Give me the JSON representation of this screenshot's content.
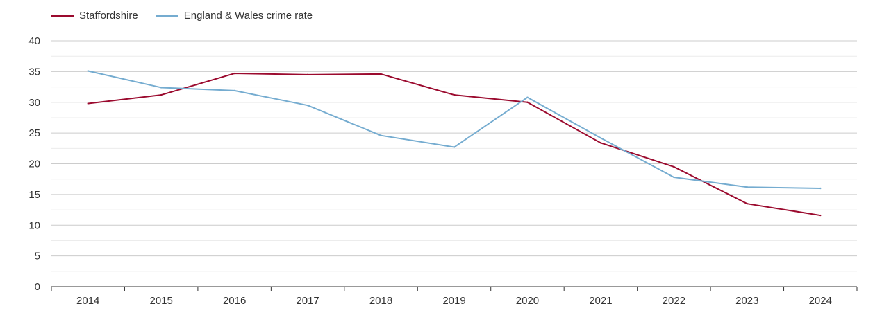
{
  "chart_data": {
    "type": "line",
    "title": "",
    "xlabel": "",
    "ylabel": "",
    "x": [
      "2014",
      "2015",
      "2016",
      "2017",
      "2018",
      "2019",
      "2020",
      "2021",
      "2022",
      "2023",
      "2024"
    ],
    "ylim": [
      0,
      40
    ],
    "yticks": [
      0,
      5,
      10,
      15,
      20,
      25,
      30,
      35,
      40
    ],
    "grid": true,
    "legend_position": "top-left",
    "series": [
      {
        "name": "Staffordshire",
        "color": "#9b0a2e",
        "values": [
          29.8,
          31.2,
          34.7,
          34.5,
          34.6,
          31.2,
          30.0,
          23.4,
          19.5,
          13.5,
          11.6
        ]
      },
      {
        "name": "England & Wales crime rate",
        "color": "#75acd0",
        "values": [
          35.1,
          32.4,
          31.9,
          29.5,
          24.6,
          22.7,
          30.8,
          24.2,
          17.8,
          16.2,
          16.0
        ]
      }
    ]
  }
}
